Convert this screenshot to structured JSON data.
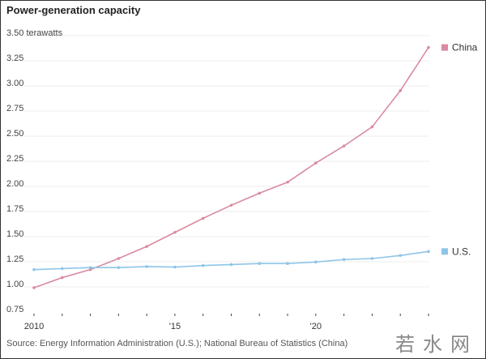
{
  "chart_data": {
    "type": "line",
    "title": "Power-generation capacity",
    "ylabel": "terawatts",
    "y_unit_label": "3.50 terawatts",
    "ylim": [
      0.75,
      3.5
    ],
    "yticks": [
      "0.75",
      "1.00",
      "1.25",
      "1.50",
      "1.75",
      "2.00",
      "2.25",
      "2.50",
      "2.75",
      "3.00",
      "3.25"
    ],
    "x": [
      2010,
      2011,
      2012,
      2013,
      2014,
      2015,
      2016,
      2017,
      2018,
      2019,
      2020,
      2021,
      2022,
      2023,
      2024
    ],
    "xtick_labels": [
      {
        "x": 2010,
        "label": "2010"
      },
      {
        "x": 2015,
        "label": "'15"
      },
      {
        "x": 2020,
        "label": "'20"
      }
    ],
    "grid": true,
    "legend_placement": "right (line ends)",
    "series": [
      {
        "name": "China",
        "color": "#d98ba0",
        "values": [
          0.96,
          1.06,
          1.14,
          1.25,
          1.37,
          1.51,
          1.65,
          1.78,
          1.9,
          2.01,
          2.2,
          2.37,
          2.56,
          2.92,
          3.35
        ]
      },
      {
        "name": "U.S.",
        "color": "#8ec5e8",
        "values": [
          1.14,
          1.15,
          1.16,
          1.16,
          1.17,
          1.165,
          1.18,
          1.19,
          1.2,
          1.2,
          1.215,
          1.24,
          1.25,
          1.28,
          1.32
        ]
      }
    ],
    "source": "Source: Energy Information Administration (U.S.); National Bureau of Statistics (China)"
  },
  "watermark": "若水网"
}
